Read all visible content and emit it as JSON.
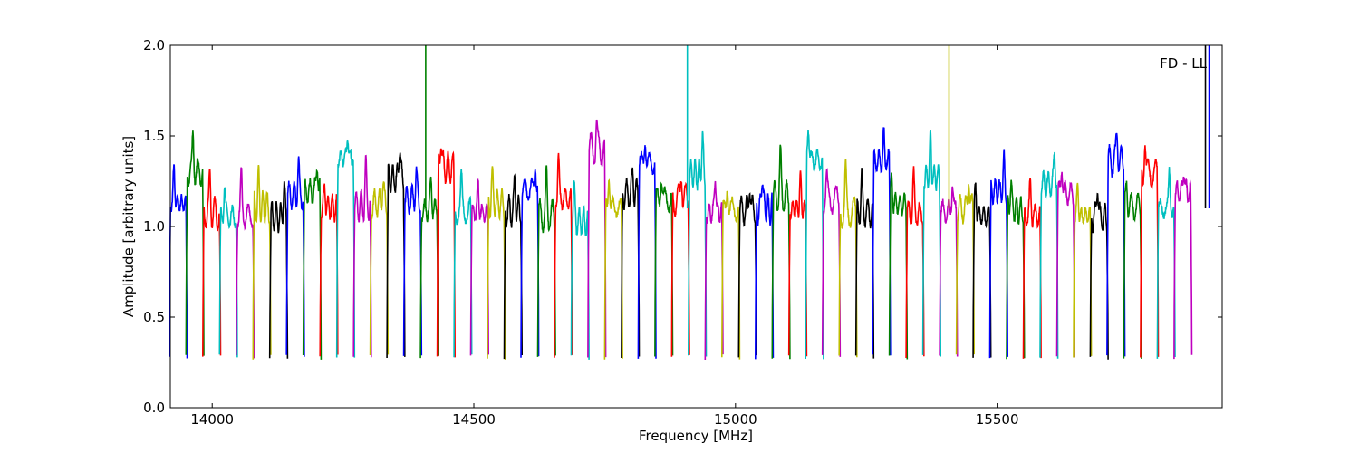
{
  "chart_data": {
    "type": "line",
    "title": "",
    "xlabel": "Frequency [MHz]",
    "ylabel": "Amplitude [arbitrary units]",
    "xlim": [
      13920,
      15930
    ],
    "ylim": [
      0.0,
      2.0
    ],
    "xticks": [
      14000,
      14500,
      15000,
      15500
    ],
    "yticks": [
      0.0,
      0.5,
      1.0,
      1.5,
      2.0
    ],
    "ytick_labels": [
      "0.0",
      "0.5",
      "1.0",
      "1.5",
      "2.0"
    ],
    "annotation": "FD - LL",
    "grid": false,
    "colors": [
      "#0000ff",
      "#008000",
      "#ff0000",
      "#00bfbf",
      "#bf00bf",
      "#bfbf00",
      "#000000"
    ],
    "channel_width_mhz": 32,
    "channel_peaks": [
      1.32,
      1.5,
      1.28,
      1.25,
      1.27,
      1.25,
      1.24,
      1.34,
      1.36,
      1.23,
      1.51,
      1.32,
      1.25,
      1.46,
      1.3,
      1.26,
      1.5,
      1.24,
      1.23,
      1.27,
      1.25,
      1.36,
      1.25,
      1.37,
      1.23,
      1.56,
      1.3,
      1.3,
      1.49,
      1.29,
      1.32,
      1.48,
      1.29,
      1.25,
      1.25,
      1.3,
      1.38,
      1.26,
      1.57,
      1.27,
      1.3,
      1.26,
      1.49,
      1.25,
      1.27,
      1.48,
      1.26,
      1.3,
      1.24,
      1.36,
      1.25,
      1.23,
      1.43,
      1.35,
      1.22,
      1.25,
      1.53,
      1.27,
      1.48,
      1.3,
      1.33
    ],
    "spikes": [
      {
        "x": 14408,
        "color": "#008000"
      },
      {
        "x": 14908,
        "color": "#00bfbf"
      },
      {
        "x": 15408,
        "color": "#bfbf00"
      },
      {
        "x": 15898,
        "color": "#000000"
      },
      {
        "x": 15905,
        "color": "#0000ff"
      }
    ]
  }
}
